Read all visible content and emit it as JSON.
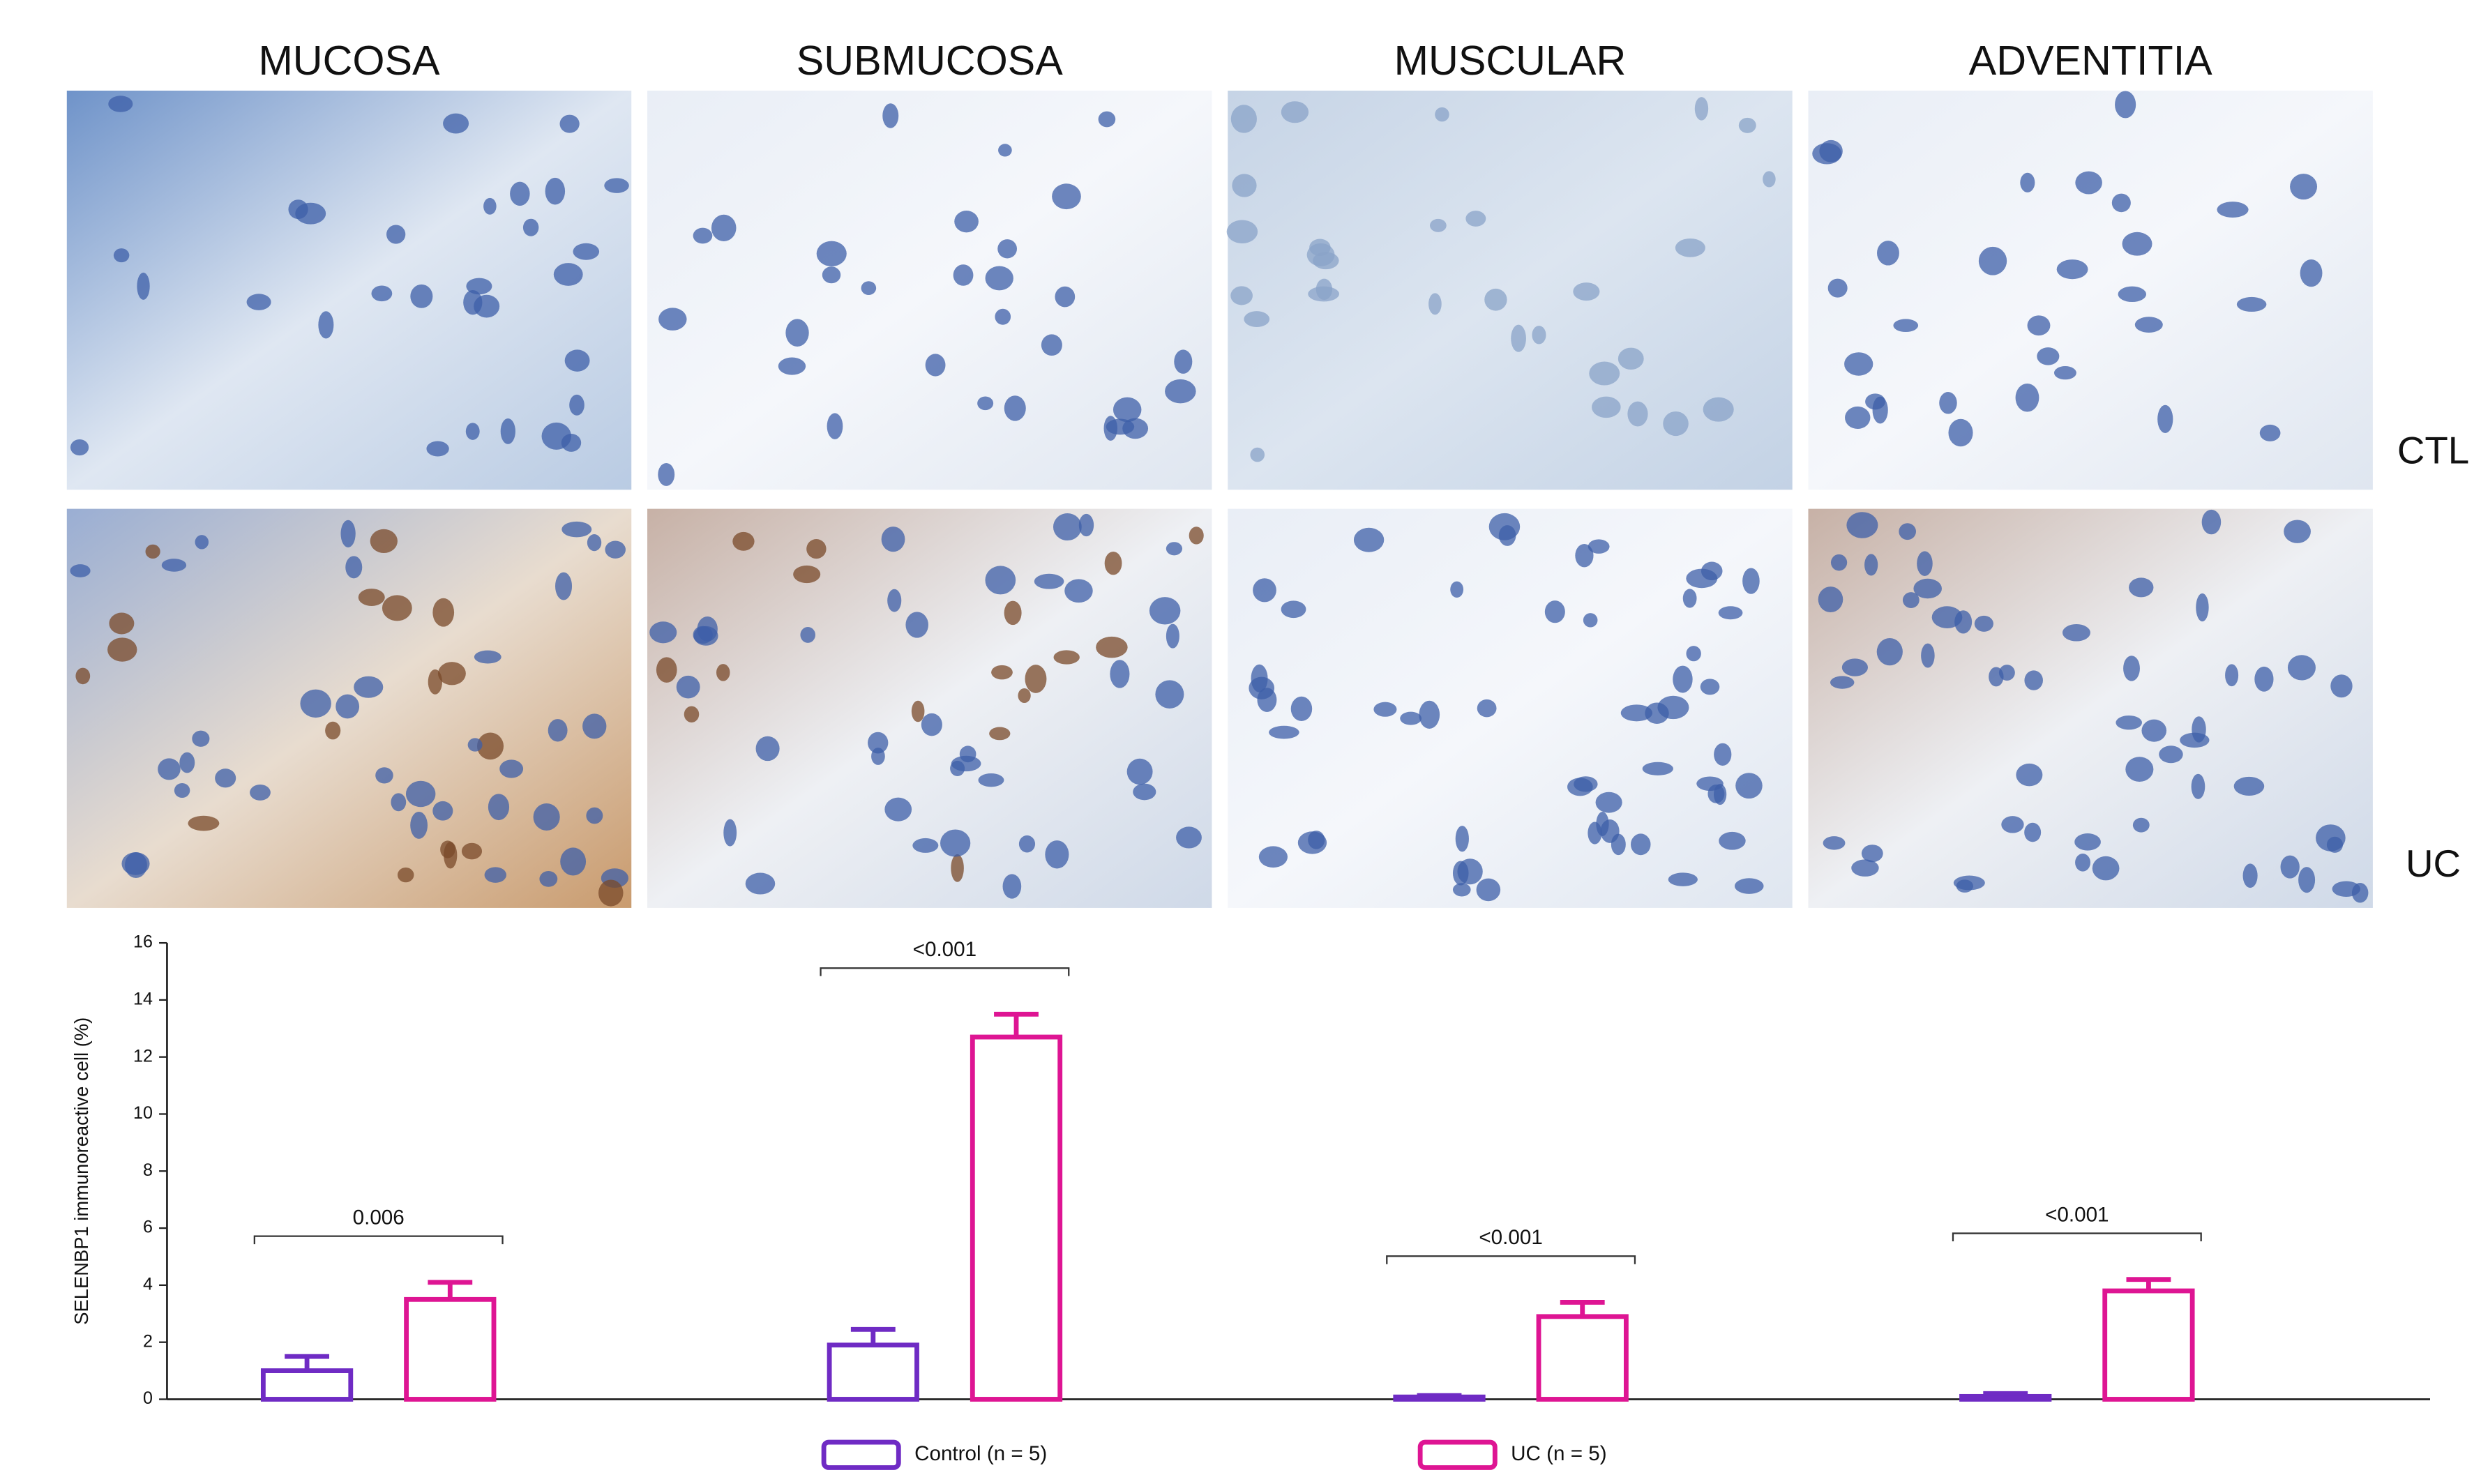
{
  "panels": {
    "columns": [
      "MUCOSA",
      "SUBMUCOSA",
      "MUSCULAR",
      "ADVENTITIA"
    ],
    "rows": [
      "CTL",
      "UC"
    ]
  },
  "chart_data": {
    "type": "bar",
    "y_label": "SELENBP1 immunoreactive cell (%)",
    "categories": [
      null,
      null,
      null,
      null
    ],
    "series": [
      {
        "name": "Control (n = 5)",
        "color": "#6f2bc4",
        "values": [
          1.0,
          1.9,
          0.08,
          0.1
        ],
        "errors": [
          0.5,
          0.55,
          0.05,
          0.1
        ]
      },
      {
        "name": "UC (n = 5)",
        "color": "#de1593",
        "values": [
          3.5,
          12.7,
          2.9,
          3.8
        ],
        "errors": [
          0.6,
          0.8,
          0.5,
          0.4
        ]
      }
    ],
    "significance": [
      "0.006",
      "<0.001",
      "<0.001",
      "<0.001"
    ],
    "ylim": [
      0,
      16
    ],
    "yticks": [
      0,
      2,
      4,
      6,
      8,
      10,
      12,
      14,
      16
    ],
    "legend": "bottom"
  }
}
